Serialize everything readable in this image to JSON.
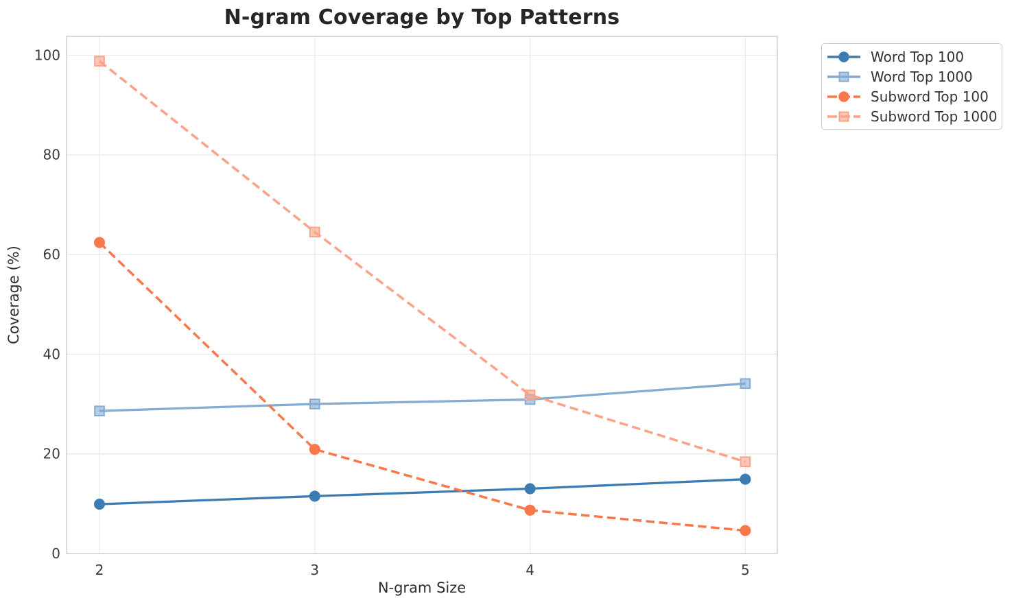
{
  "chart_data": {
    "type": "line",
    "title": "N-gram Coverage by Top Patterns",
    "xlabel": "N-gram Size",
    "ylabel": "Coverage (%)",
    "x": [
      2,
      3,
      4,
      5
    ],
    "xtick_labels": [
      "2",
      "3",
      "4",
      "5"
    ],
    "yticks": [
      0,
      20,
      40,
      60,
      80,
      100
    ],
    "ylim": [
      0,
      103.8
    ],
    "xlim": [
      1.85,
      5.15
    ],
    "grid": true,
    "legend_position": "upper-right-outside",
    "series": [
      {
        "name": "Word Top 100",
        "color": "#3d7cb3",
        "line_style": "solid",
        "marker": "circle",
        "values": [
          9.9,
          11.5,
          13.0,
          14.9
        ]
      },
      {
        "name": "Word Top 1000",
        "color": "#84abd2",
        "line_style": "solid",
        "marker": "square",
        "values": [
          28.6,
          30.0,
          30.9,
          34.1
        ]
      },
      {
        "name": "Subword Top 100",
        "color": "#f8784c",
        "line_style": "dashed",
        "marker": "circle",
        "values": [
          62.4,
          20.9,
          8.7,
          4.6
        ]
      },
      {
        "name": "Subword Top 1000",
        "color": "#fba287",
        "line_style": "dashed",
        "marker": "square",
        "values": [
          98.8,
          64.5,
          31.8,
          18.4
        ]
      }
    ],
    "palette": {
      "background": "#ffffff",
      "grid": "#e9e9e9",
      "spine": "#cccccc",
      "title_text": "#262626",
      "axis_text": "#2f2f2f",
      "tick_text": "#3b3b3b",
      "legend_text": "#333333",
      "legend_border": "#cccccc"
    }
  }
}
